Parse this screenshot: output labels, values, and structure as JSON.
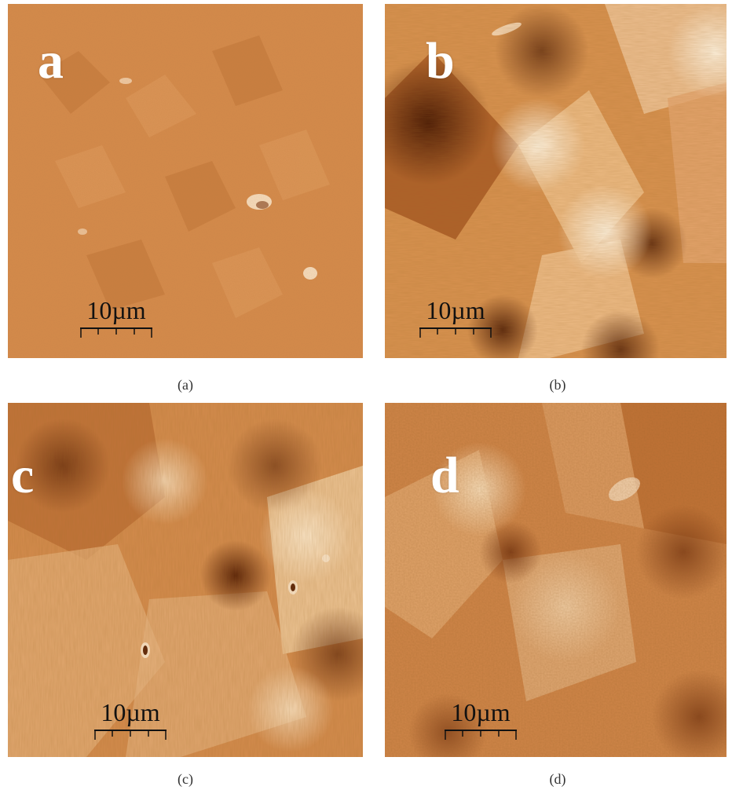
{
  "panels": [
    {
      "letter": "a",
      "scale_label": "10µm",
      "caption": "(a)"
    },
    {
      "letter": "b",
      "scale_label": "10µm",
      "caption": "(b)"
    },
    {
      "letter": "c",
      "scale_label": "10µm",
      "caption": "(c)"
    },
    {
      "letter": "d",
      "scale_label": "10µm",
      "caption": "(d)"
    }
  ],
  "colors": {
    "base": "#d68a4c",
    "light": "#f6d8b4",
    "dark": "#7a3510",
    "text_dark": "#111111",
    "label_white": "#ffffff"
  }
}
